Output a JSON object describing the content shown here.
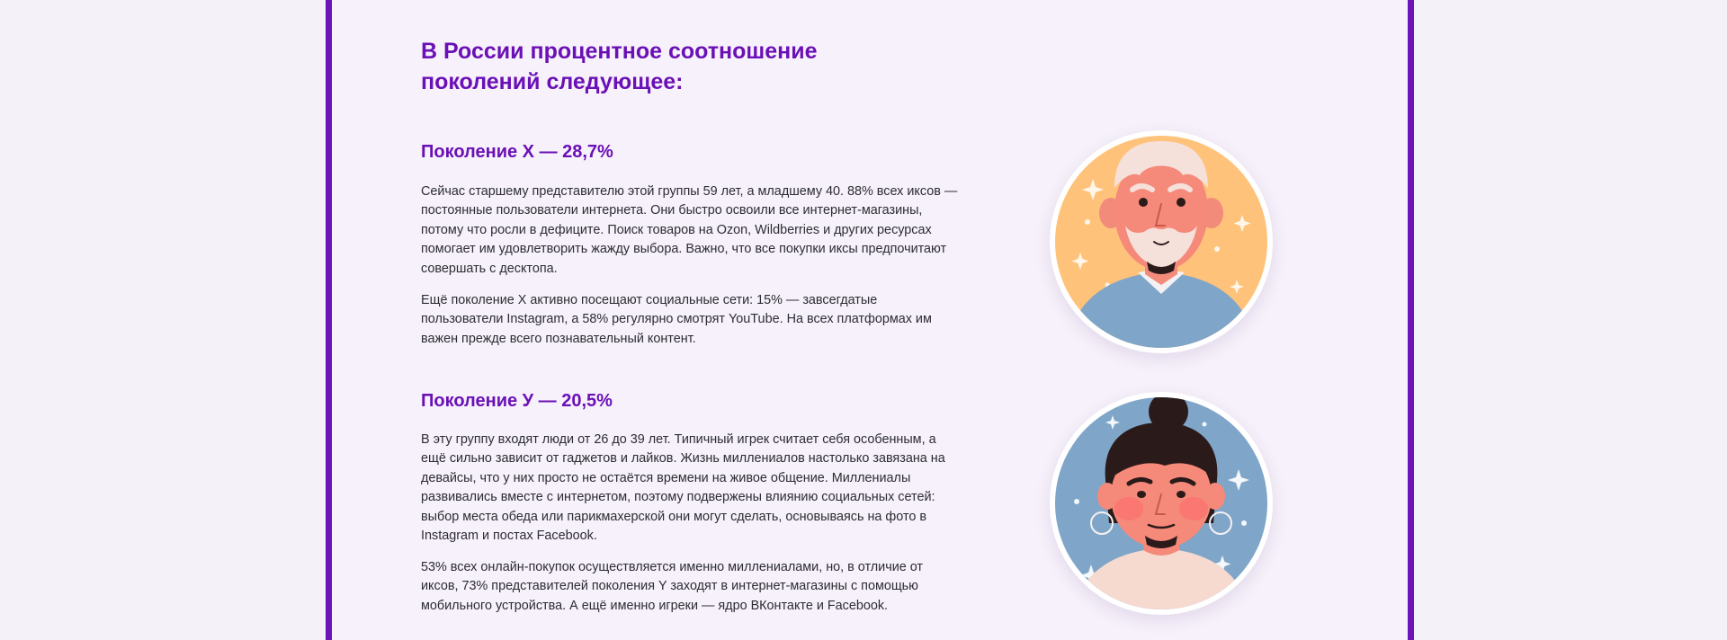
{
  "article": {
    "title": "В России процентное соотношение поколений следующее:",
    "sections": [
      {
        "heading": "Поколение Х — 28,7%",
        "paragraphs": [
          "Сейчас старшему представителю этой группы 59 лет, а младшему 40. 88% всех иксов — постоянные пользователи интернета. Они быстро освоили все интернет-магазины, потому что росли в дефиците. Поиск товаров на Ozon, Wildberries и других ресурсах помогает им удовлетворить жажду выбора. Важно, что все покупки иксы предпочитают совершать с десктопа.",
          "Ещё поколение Х активно посещают социальные сети: 15% — завсегдатые пользователи Instagram, а 58% регулярно смотрят YouTube. На всех платформах им важен прежде всего познавательный контент."
        ],
        "illustration": "elderly-man-avatar"
      },
      {
        "heading": "Поколение У — 20,5%",
        "paragraphs": [
          "В эту группу входят люди от 26 до 39 лет. Типичный игрек считает себя особенным, а ещё сильно зависит от гаджетов и лайков. Жизнь миллениалов настолько завязана на девайсы, что у них просто не остаётся времени на живое общение. Миллениалы развивались вместе с интернетом, поэтому подвержены влиянию социальных сетей: выбор места обеда или парикмахерской они могут сделать, основываясь на фото в Instagram и постах Facebook.",
          "53% всех онлайн-покупок осуществляется именно миллениалами, но, в отличие от иксов, 73% представителей поколения Y заходят в интернет-магазины с помощью мобильного устройства. А ещё именно игреки — ядро ВКонтакте и Facebook."
        ],
        "illustration": "millennial-woman-avatar"
      }
    ]
  },
  "colors": {
    "accent": "#6a10b6",
    "frame": "#6b14b8",
    "background": "#f6f1fa",
    "text": "#2d2d33",
    "avatar_x_bg": "#ffc27a",
    "avatar_y_bg": "#7fa6c8"
  }
}
